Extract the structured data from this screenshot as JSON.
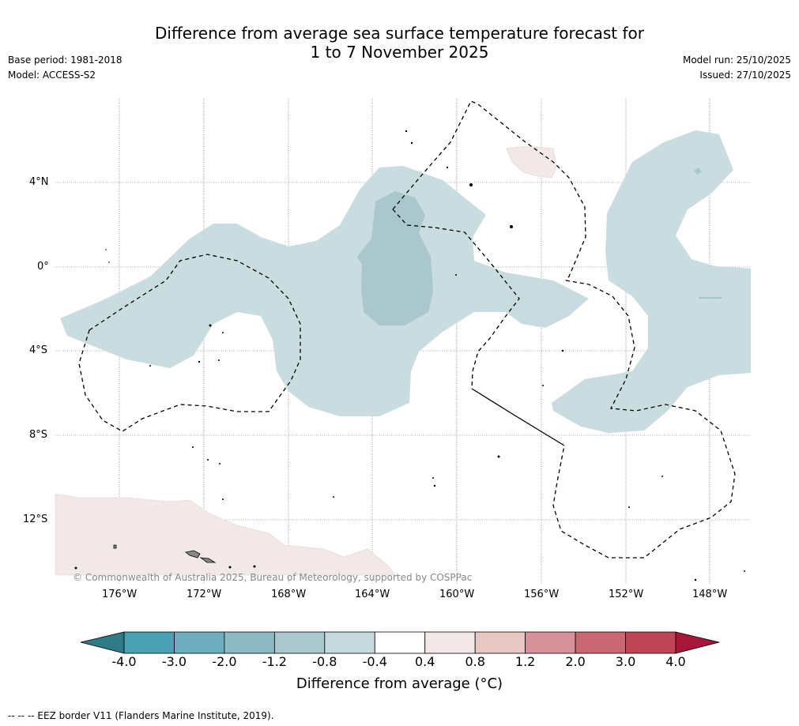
{
  "title": {
    "line1": "Difference from average sea surface temperature forecast for",
    "line2": "1 to 7 November 2025"
  },
  "meta_left": {
    "base_period": "Base period: 1981-2018",
    "model": "Model: ACCESS-S2"
  },
  "meta_right": {
    "model_run": "Model run: 25/10/2025",
    "issued": "Issued: 27/10/2025"
  },
  "map": {
    "lat_labels": [
      "4°N",
      "0°",
      "4°S",
      "8°S",
      "12°S"
    ],
    "lon_labels": [
      "176°W",
      "172°W",
      "168°W",
      "164°W",
      "160°W",
      "156°W",
      "152°W",
      "148°W"
    ],
    "copyright": "© Commonwealth of Australia 2025, Bureau of Meteorology, supported by COSPPac"
  },
  "colorbar": {
    "ticks": [
      "-4.0",
      "-3.0",
      "-2.0",
      "-1.2",
      "-0.8",
      "-0.4",
      "0.4",
      "0.8",
      "1.2",
      "2.0",
      "3.0",
      "4.0"
    ],
    "colors": {
      "below_min": "#2e7a87",
      "bins": [
        "#48a2b4",
        "#6caebd",
        "#8dbac2",
        "#aac7cd",
        "#c6dade",
        "#ffffff",
        "#f2e8e8",
        "#e7c7c1",
        "#d6929b",
        "#c96874",
        "#bd4556"
      ],
      "above_max": "#a8163a"
    },
    "label": "Difference from average (°C)"
  },
  "footnote": "--  --  -- EEZ border V11 (Flanders Marine Institute, 2019)."
}
